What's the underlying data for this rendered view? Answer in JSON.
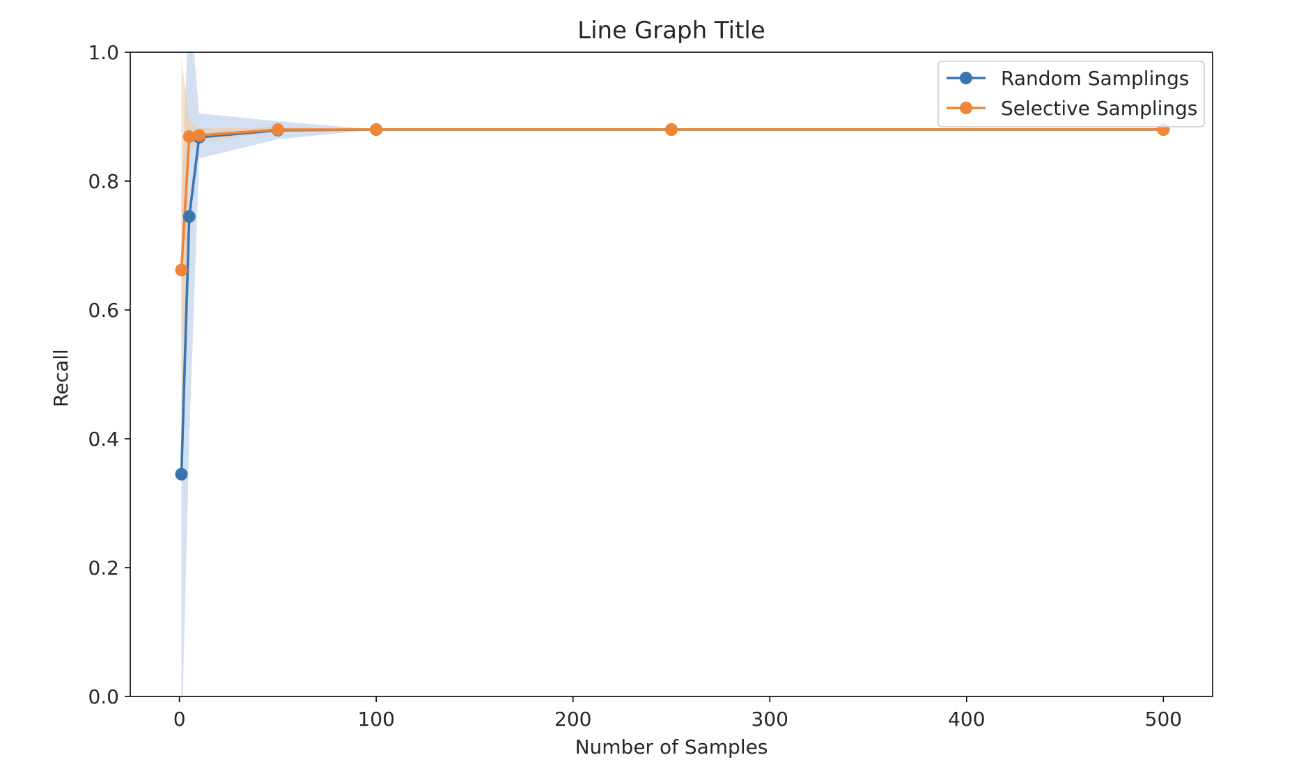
{
  "chart_data": {
    "type": "line",
    "title": "Line Graph Title",
    "xlabel": "Number of Samples",
    "ylabel": "Recall",
    "xlim": [
      -25,
      525
    ],
    "ylim": [
      0.0,
      1.0
    ],
    "x_ticks": [
      0,
      100,
      200,
      300,
      400,
      500
    ],
    "x_tick_labels": [
      "0",
      "100",
      "200",
      "300",
      "400",
      "500"
    ],
    "y_ticks": [
      0.0,
      0.2,
      0.4,
      0.6,
      0.8,
      1.0
    ],
    "y_tick_labels": [
      "0.0",
      "0.2",
      "0.4",
      "0.6",
      "0.8",
      "1.0"
    ],
    "grid": false,
    "legend_position": "top-right",
    "series": [
      {
        "name": "Random Samplings",
        "color": "#3b75af",
        "band_color": "#aec7e8",
        "marker": "circle",
        "x": [
          1,
          5,
          10,
          50,
          100,
          250,
          500
        ],
        "y": [
          0.345,
          0.745,
          0.868,
          0.879,
          0.88,
          0.88,
          0.88
        ],
        "lower": [
          -0.08,
          0.4,
          0.835,
          0.865,
          0.88,
          0.88,
          0.88
        ],
        "upper": [
          0.77,
          1.09,
          0.905,
          0.893,
          0.88,
          0.88,
          0.88
        ]
      },
      {
        "name": "Selective Samplings",
        "color": "#ef8536",
        "band_color": "#f2c6a0",
        "marker": "circle",
        "x": [
          1,
          5,
          10,
          50,
          100,
          250,
          500
        ],
        "y": [
          0.662,
          0.869,
          0.871,
          0.88,
          0.88,
          0.88,
          0.88
        ],
        "lower": [
          0.34,
          0.845,
          0.862,
          0.876,
          0.88,
          0.88,
          0.88
        ],
        "upper": [
          0.99,
          0.895,
          0.882,
          0.884,
          0.88,
          0.88,
          0.88
        ]
      }
    ]
  }
}
